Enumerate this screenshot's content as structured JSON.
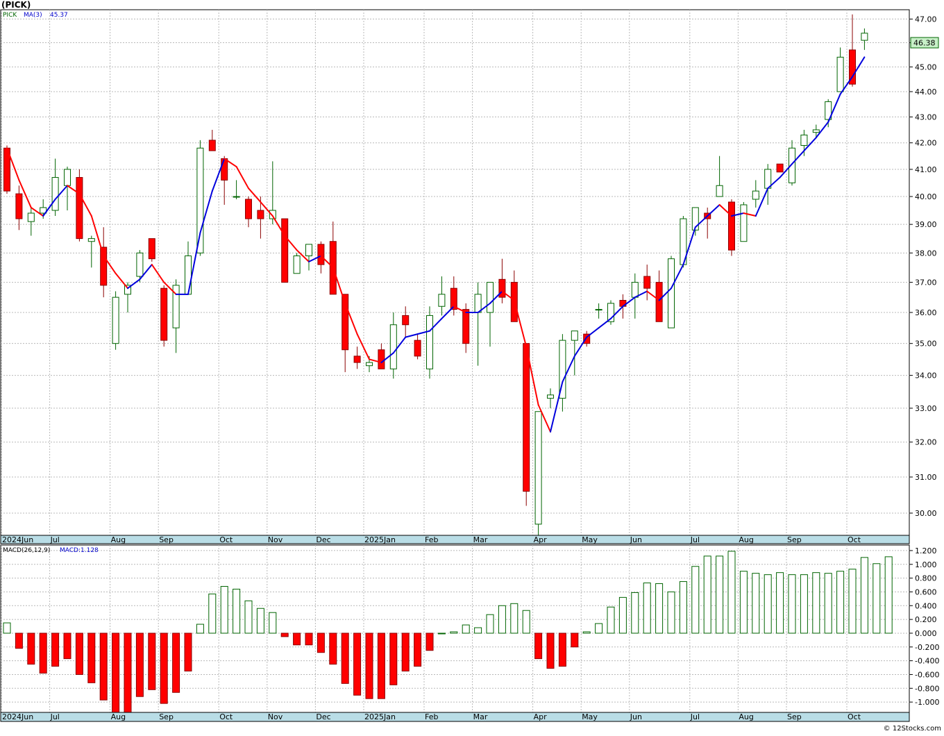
{
  "symbol": "(PICK)",
  "watermark": "© 12Stocks.com",
  "colors": {
    "up_candle_fill": "#ffffff",
    "up_candle_stroke": "#006400",
    "down_candle_fill": "#ff0000",
    "down_candle_stroke": "#8b0000",
    "ma_up": "#0000dd",
    "ma_down": "#ff0000",
    "axis_band": "#b9dde6",
    "grid": "#b8b8b8",
    "price_label_bg": "#c8f0c8"
  },
  "price_panel": {
    "label_symbol": "PICK",
    "label_ma": "MA(3)",
    "label_ma_value": "45.37",
    "last_price": "46.38"
  },
  "macd_panel": {
    "label": "MACD(26,12,9)",
    "label_value": "MACD:1.128"
  },
  "chart_data": [
    {
      "type": "candlestick",
      "title": "(PICK)",
      "x_tick_labels": [
        "2024Jun",
        "Jul",
        "Aug",
        "Sep",
        "Oct",
        "Nov",
        "Dec",
        "2025Jan",
        "Feb",
        "Mar",
        "Apr",
        "May",
        "Jun",
        "Jul",
        "Aug",
        "Sep",
        "Oct"
      ],
      "x_tick_index": [
        0,
        4,
        9,
        13,
        18,
        22,
        26,
        30,
        35,
        39,
        44,
        48,
        52,
        57,
        61,
        65,
        70
      ],
      "y_ticks": [
        "30.00",
        "31.00",
        "32.00",
        "33.00",
        "34.00",
        "35.00",
        "36.00",
        "37.00",
        "38.00",
        "39.00",
        "40.00",
        "41.00",
        "42.00",
        "43.00",
        "44.00",
        "45.00",
        "46.00",
        "47.00"
      ],
      "ylim": [
        29.4,
        47.4
      ],
      "grid": true,
      "scale": "log",
      "candles": [
        {
          "o": 41.8,
          "h": 41.9,
          "l": 40.1,
          "c": 40.2
        },
        {
          "o": 40.1,
          "h": 40.4,
          "l": 38.8,
          "c": 39.2
        },
        {
          "o": 39.1,
          "h": 39.6,
          "l": 38.6,
          "c": 39.4
        },
        {
          "o": 39.4,
          "h": 39.9,
          "l": 39.2,
          "c": 39.6
        },
        {
          "o": 39.5,
          "h": 41.4,
          "l": 39.3,
          "c": 40.7
        },
        {
          "o": 40.4,
          "h": 41.1,
          "l": 39.5,
          "c": 41.0
        },
        {
          "o": 40.7,
          "h": 41.0,
          "l": 38.4,
          "c": 38.5
        },
        {
          "o": 38.4,
          "h": 38.6,
          "l": 37.5,
          "c": 38.5
        },
        {
          "o": 38.2,
          "h": 38.9,
          "l": 36.5,
          "c": 36.9
        },
        {
          "o": 35.0,
          "h": 36.7,
          "l": 34.8,
          "c": 36.5
        },
        {
          "o": 36.6,
          "h": 37.0,
          "l": 36.0,
          "c": 36.9
        },
        {
          "o": 37.2,
          "h": 38.1,
          "l": 37.0,
          "c": 38.0
        },
        {
          "o": 38.5,
          "h": 38.5,
          "l": 37.7,
          "c": 37.8
        },
        {
          "o": 36.8,
          "h": 36.9,
          "l": 34.9,
          "c": 35.1
        },
        {
          "o": 35.5,
          "h": 37.1,
          "l": 34.7,
          "c": 36.9
        },
        {
          "o": 36.6,
          "h": 38.4,
          "l": 36.6,
          "c": 37.9
        },
        {
          "o": 38.0,
          "h": 42.1,
          "l": 37.9,
          "c": 41.8
        },
        {
          "o": 42.1,
          "h": 42.5,
          "l": 41.7,
          "c": 41.7
        },
        {
          "o": 41.4,
          "h": 41.5,
          "l": 39.7,
          "c": 40.6
        },
        {
          "o": 40.0,
          "h": 40.6,
          "l": 39.9,
          "c": 40.0
        },
        {
          "o": 39.9,
          "h": 40.0,
          "l": 38.9,
          "c": 39.2
        },
        {
          "o": 39.5,
          "h": 40.0,
          "l": 38.5,
          "c": 39.2
        },
        {
          "o": 39.2,
          "h": 41.3,
          "l": 39.0,
          "c": 39.5
        },
        {
          "o": 39.2,
          "h": 39.2,
          "l": 37.0,
          "c": 37.0
        },
        {
          "o": 37.3,
          "h": 38.0,
          "l": 37.3,
          "c": 37.9
        },
        {
          "o": 37.9,
          "h": 38.3,
          "l": 37.4,
          "c": 38.3
        },
        {
          "o": 38.3,
          "h": 38.4,
          "l": 37.3,
          "c": 37.6
        },
        {
          "o": 38.4,
          "h": 39.1,
          "l": 36.6,
          "c": 36.6
        },
        {
          "o": 36.6,
          "h": 36.6,
          "l": 34.1,
          "c": 34.8
        },
        {
          "o": 34.6,
          "h": 34.9,
          "l": 34.2,
          "c": 34.4
        },
        {
          "o": 34.3,
          "h": 34.6,
          "l": 34.1,
          "c": 34.4
        },
        {
          "o": 34.8,
          "h": 35.0,
          "l": 34.2,
          "c": 34.2
        },
        {
          "o": 34.2,
          "h": 36.0,
          "l": 33.9,
          "c": 35.6
        },
        {
          "o": 35.9,
          "h": 36.2,
          "l": 35.2,
          "c": 35.6
        },
        {
          "o": 35.1,
          "h": 35.3,
          "l": 34.5,
          "c": 34.6
        },
        {
          "o": 34.2,
          "h": 36.2,
          "l": 33.9,
          "c": 35.9
        },
        {
          "o": 36.2,
          "h": 37.2,
          "l": 35.9,
          "c": 36.6
        },
        {
          "o": 36.8,
          "h": 37.2,
          "l": 35.9,
          "c": 36.1
        },
        {
          "o": 36.1,
          "h": 36.3,
          "l": 34.7,
          "c": 35.0
        },
        {
          "o": 36.0,
          "h": 37.0,
          "l": 34.3,
          "c": 36.6
        },
        {
          "o": 36.0,
          "h": 37.0,
          "l": 34.9,
          "c": 37.0
        },
        {
          "o": 37.1,
          "h": 37.8,
          "l": 36.3,
          "c": 36.5
        },
        {
          "o": 37.0,
          "h": 37.4,
          "l": 35.7,
          "c": 35.7
        },
        {
          "o": 35.0,
          "h": 35.0,
          "l": 30.2,
          "c": 30.6
        },
        {
          "o": 29.7,
          "h": 32.9,
          "l": 29.4,
          "c": 32.9
        },
        {
          "o": 33.3,
          "h": 33.6,
          "l": 33.0,
          "c": 33.4
        },
        {
          "o": 33.3,
          "h": 35.3,
          "l": 32.9,
          "c": 35.1
        },
        {
          "o": 35.1,
          "h": 35.4,
          "l": 34.0,
          "c": 35.4
        },
        {
          "o": 35.3,
          "h": 35.4,
          "l": 34.9,
          "c": 35.0
        },
        {
          "o": 36.1,
          "h": 36.3,
          "l": 35.8,
          "c": 36.1
        },
        {
          "o": 35.7,
          "h": 36.4,
          "l": 35.6,
          "c": 36.3
        },
        {
          "o": 36.4,
          "h": 36.6,
          "l": 35.8,
          "c": 36.2
        },
        {
          "o": 36.5,
          "h": 37.3,
          "l": 35.8,
          "c": 37.0
        },
        {
          "o": 37.2,
          "h": 37.6,
          "l": 36.4,
          "c": 36.8
        },
        {
          "o": 37.0,
          "h": 37.4,
          "l": 35.7,
          "c": 35.7
        },
        {
          "o": 35.5,
          "h": 37.9,
          "l": 35.5,
          "c": 37.8
        },
        {
          "o": 37.6,
          "h": 39.3,
          "l": 37.5,
          "c": 39.2
        },
        {
          "o": 38.8,
          "h": 39.6,
          "l": 38.6,
          "c": 39.6
        },
        {
          "o": 39.4,
          "h": 39.6,
          "l": 38.5,
          "c": 39.2
        },
        {
          "o": 40.0,
          "h": 41.5,
          "l": 40.0,
          "c": 40.4
        },
        {
          "o": 39.8,
          "h": 39.9,
          "l": 37.9,
          "c": 38.1
        },
        {
          "o": 38.4,
          "h": 39.8,
          "l": 38.4,
          "c": 39.7
        },
        {
          "o": 39.9,
          "h": 40.6,
          "l": 39.6,
          "c": 40.2
        },
        {
          "o": 40.3,
          "h": 41.2,
          "l": 39.7,
          "c": 41.0
        },
        {
          "o": 41.2,
          "h": 41.2,
          "l": 40.9,
          "c": 40.9
        },
        {
          "o": 40.5,
          "h": 42.1,
          "l": 40.4,
          "c": 41.8
        },
        {
          "o": 41.9,
          "h": 42.5,
          "l": 41.5,
          "c": 42.3
        },
        {
          "o": 42.4,
          "h": 42.7,
          "l": 42.2,
          "c": 42.5
        },
        {
          "o": 42.9,
          "h": 43.7,
          "l": 42.6,
          "c": 43.6
        },
        {
          "o": 44.0,
          "h": 45.8,
          "l": 44.0,
          "c": 45.4
        },
        {
          "o": 45.7,
          "h": 47.2,
          "l": 44.2,
          "c": 44.3
        },
        {
          "o": 46.1,
          "h": 46.6,
          "l": 45.7,
          "c": 46.4
        }
      ],
      "ma3": [
        41.8,
        40.6,
        39.6,
        39.3,
        39.9,
        40.4,
        40.1,
        39.3,
        37.9,
        37.3,
        36.8,
        37.1,
        37.6,
        37.0,
        36.6,
        36.6,
        38.7,
        40.2,
        41.4,
        41.1,
        40.3,
        39.8,
        39.3,
        38.6,
        38.1,
        37.7,
        37.9,
        37.5,
        36.3,
        35.3,
        34.5,
        34.4,
        34.7,
        35.2,
        35.3,
        35.4,
        35.8,
        36.2,
        36.0,
        36.0,
        36.3,
        36.7,
        36.4,
        34.9,
        33.1,
        32.3,
        33.8,
        34.6,
        35.2,
        35.5,
        35.8,
        36.2,
        36.5,
        36.7,
        36.4,
        36.8,
        37.6,
        38.9,
        39.3,
        39.7,
        39.3,
        39.4,
        39.3,
        40.3,
        40.7,
        41.2,
        41.7,
        42.2,
        42.8,
        43.9,
        44.6,
        45.4
      ]
    },
    {
      "type": "bar",
      "title": "MACD(26,12,9)",
      "y_ticks": [
        "-1.000",
        "-0.800",
        "-0.600",
        "-0.400",
        "-0.200",
        "0.000",
        "0.200",
        "0.400",
        "0.600",
        "0.800",
        "1.000",
        "1.200"
      ],
      "ylim": [
        -1.15,
        1.28
      ],
      "grid": true,
      "values": [
        0.15,
        -0.22,
        -0.45,
        -0.58,
        -0.48,
        -0.37,
        -0.6,
        -0.72,
        -0.97,
        -1.15,
        -1.15,
        -0.92,
        -0.82,
        -1.02,
        -0.86,
        -0.55,
        0.13,
        0.57,
        0.68,
        0.64,
        0.47,
        0.36,
        0.3,
        -0.05,
        -0.17,
        -0.17,
        -0.28,
        -0.45,
        -0.73,
        -0.9,
        -0.95,
        -0.95,
        -0.75,
        -0.55,
        -0.48,
        -0.25,
        0.0,
        0.02,
        0.12,
        0.08,
        0.27,
        0.4,
        0.43,
        0.33,
        -0.37,
        -0.51,
        -0.48,
        -0.2,
        0.02,
        0.14,
        0.38,
        0.52,
        0.59,
        0.73,
        0.72,
        0.6,
        0.75,
        0.97,
        1.12,
        1.12,
        1.19,
        0.9,
        0.87,
        0.85,
        0.88,
        0.85,
        0.85,
        0.88,
        0.87,
        0.9,
        0.93,
        1.1,
        1.01,
        1.11
      ]
    }
  ]
}
